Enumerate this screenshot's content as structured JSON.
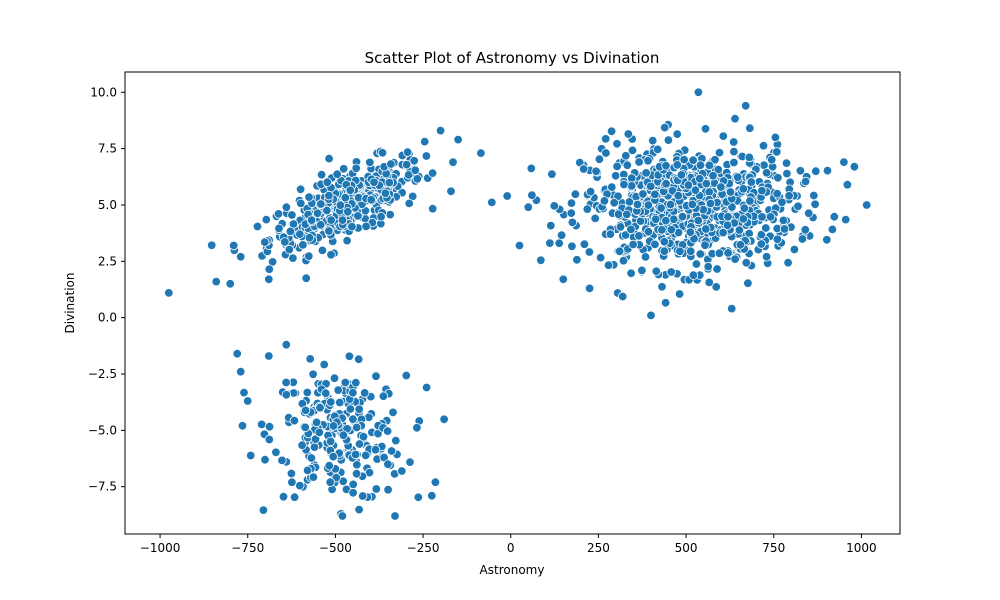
{
  "chart_data": {
    "type": "scatter",
    "title": "Scatter Plot of Astronomy vs Divination",
    "xlabel": "Astronomy",
    "ylabel": "Divination",
    "xlim": [
      -1100,
      1110
    ],
    "ylim": [
      -9.6,
      10.9
    ],
    "x_ticks": [
      -1000,
      -750,
      -500,
      -250,
      0,
      250,
      500,
      750,
      1000
    ],
    "x_tick_labels": [
      "−1000",
      "−750",
      "−500",
      "−250",
      "0",
      "250",
      "500",
      "750",
      "1000"
    ],
    "y_ticks": [
      -7.5,
      -5.0,
      -2.5,
      0.0,
      2.5,
      5.0,
      7.5,
      10.0
    ],
    "y_tick_labels": [
      "−7.5",
      "−5.0",
      "−2.5",
      "0.0",
      "2.5",
      "5.0",
      "7.5",
      "10.0"
    ],
    "grid": false,
    "legend": false,
    "marker_color": "#1f77b4",
    "marker_edge_color": "#ffffff",
    "clusters": [
      {
        "center": [
          -470,
          5.0
        ],
        "count": 400,
        "std": [
          110,
          1.05
        ],
        "corr": 0.72
      },
      {
        "center": [
          -490,
          -5.2
        ],
        "count": 250,
        "std": [
          95,
          1.45
        ],
        "corr": -0.1
      },
      {
        "center": [
          510,
          4.9
        ],
        "count": 800,
        "std": [
          150,
          1.35
        ],
        "corr": 0.0
      }
    ],
    "points": [
      [
        -975,
        1.1
      ],
      [
        -840,
        1.6
      ],
      [
        -800,
        1.5
      ],
      [
        -790,
        3.2
      ],
      [
        -770,
        2.7
      ],
      [
        -690,
        1.7
      ],
      [
        -200,
        8.3
      ],
      [
        -150,
        7.9
      ],
      [
        -85,
        7.3
      ],
      [
        -780,
        -1.6
      ],
      [
        -770,
        -2.4
      ],
      [
        -765,
        -4.8
      ],
      [
        -750,
        -3.7
      ],
      [
        -690,
        -1.7
      ],
      [
        -480,
        -8.8
      ],
      [
        -330,
        -8.8
      ],
      [
        -225,
        -7.9
      ],
      [
        -215,
        -7.3
      ],
      [
        -240,
        -3.1
      ],
      [
        -640,
        -1.2
      ],
      [
        -10,
        5.4
      ],
      [
        25,
        3.2
      ],
      [
        50,
        4.9
      ],
      [
        150,
        1.7
      ],
      [
        225,
        1.3
      ],
      [
        400,
        0.1
      ],
      [
        630,
        0.4
      ],
      [
        535,
        10.0
      ],
      [
        670,
        9.4
      ],
      [
        870,
        6.5
      ],
      [
        950,
        6.9
      ],
      [
        960,
        5.9
      ],
      [
        980,
        6.7
      ],
      [
        1015,
        5.0
      ],
      [
        840,
        3.9
      ]
    ]
  }
}
